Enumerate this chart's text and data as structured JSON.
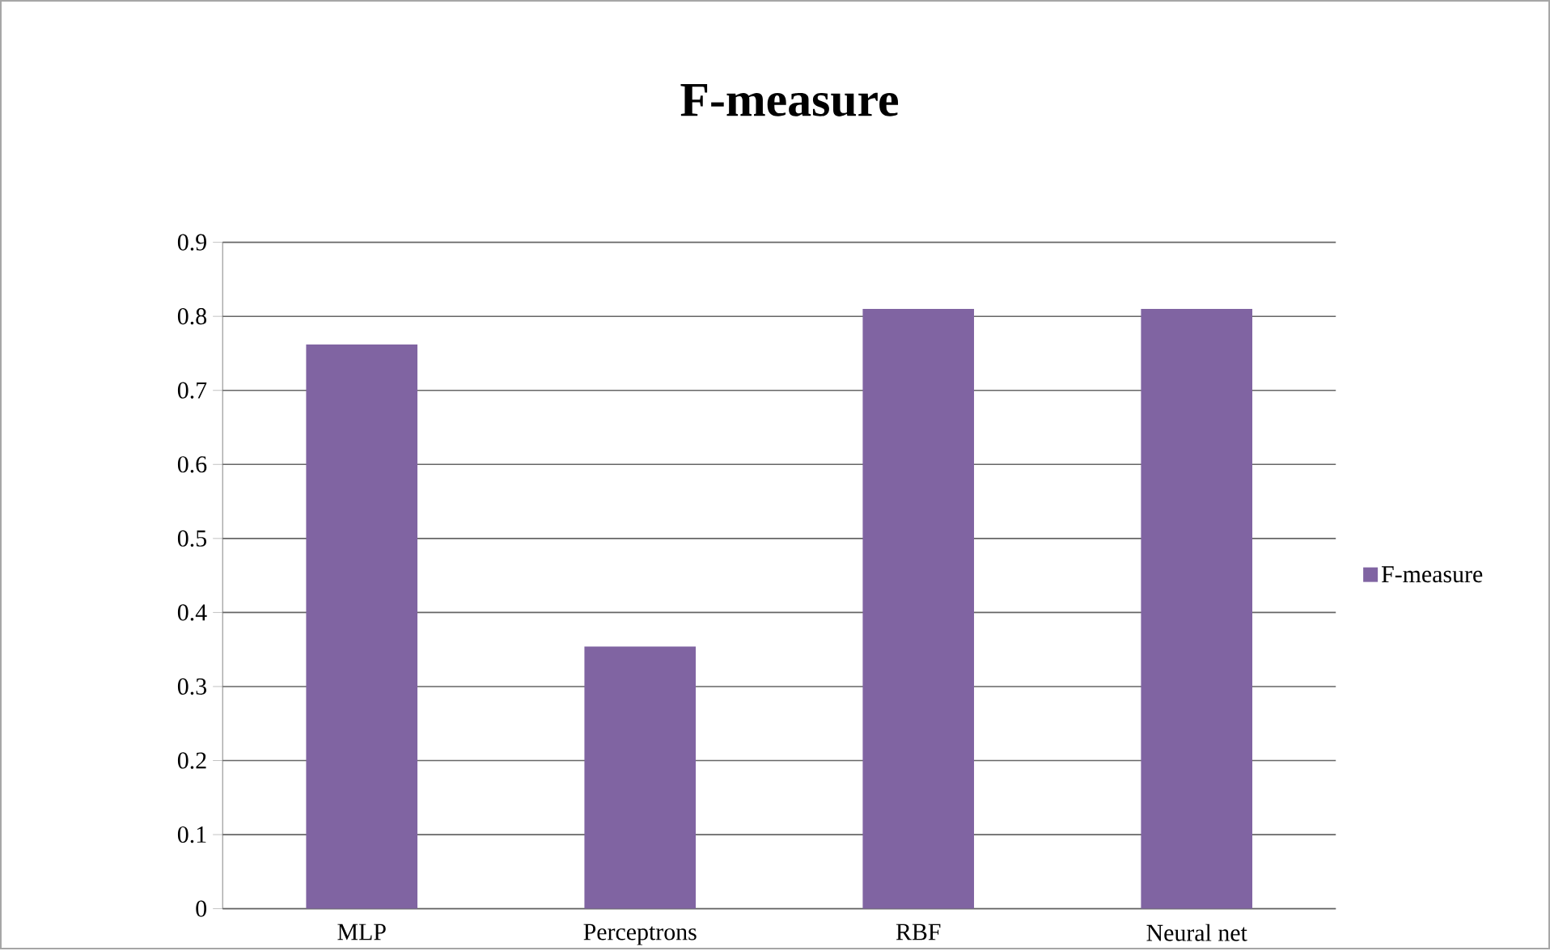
{
  "chart_data": {
    "type": "bar",
    "title": "F-measure",
    "categories": [
      "MLP",
      "Perceptrons",
      "RBF",
      "Neural net"
    ],
    "series": [
      {
        "name": "F-measure",
        "color": "#8064a2",
        "values": [
          0.762,
          0.354,
          0.81,
          0.81
        ]
      }
    ],
    "ylim": [
      0,
      0.9
    ],
    "yticks": [
      0,
      0.1,
      0.2,
      0.3,
      0.4,
      0.5,
      0.6,
      0.7,
      0.8,
      0.9
    ],
    "grid": "y",
    "legend": "right"
  }
}
